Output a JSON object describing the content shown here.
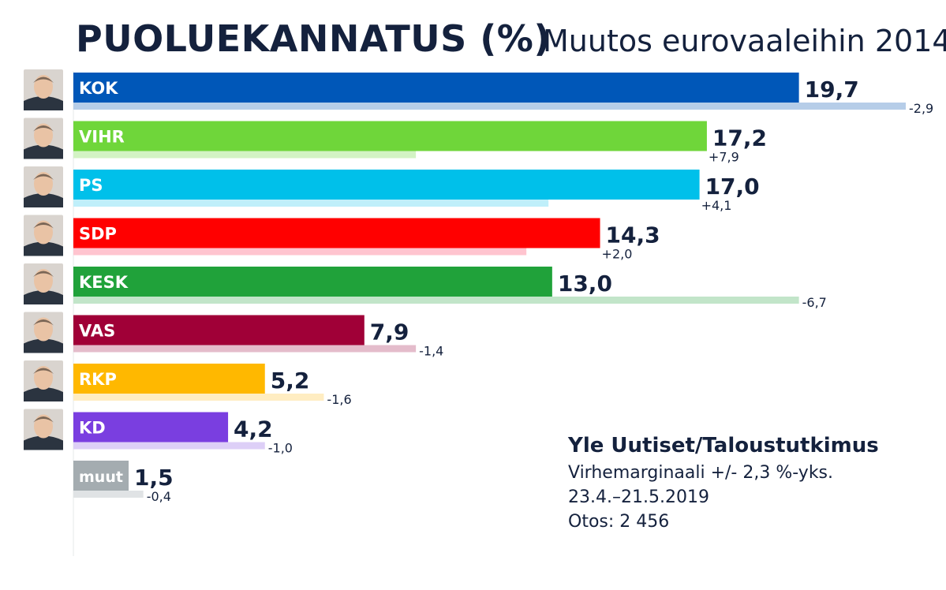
{
  "title": "PUOLUEKANNATUS (%)",
  "subtitle": "Muutos eurovaaleihin 2014",
  "source": {
    "title": "Yle Uutiset/Taloustutkimus",
    "margin": "Virhemarginaali  +/- 2,3 %-yks.",
    "period": "23.4.–21.5.2019",
    "sample": "Otos: 2 456"
  },
  "chart_data": {
    "type": "bar",
    "orientation": "horizontal",
    "categories": [
      "KOK",
      "VIHR",
      "PS",
      "SDP",
      "KESK",
      "VAS",
      "RKP",
      "KD",
      "muut"
    ],
    "series": [
      {
        "values": [
          19.7,
          17.2,
          17.0,
          14.3,
          13.0,
          7.9,
          5.2,
          4.2,
          1.5
        ]
      },
      {
        "values": [
          22.6,
          9.3,
          12.9,
          12.3,
          19.7,
          9.3,
          6.8,
          5.2,
          1.9
        ]
      }
    ],
    "value_labels": [
      "19,7",
      "17,2",
      "17,0",
      "14,3",
      "13,0",
      "7,9",
      "5,2",
      "4,2",
      "1,5"
    ],
    "change_labels": [
      "-2,9",
      "+7,9",
      "+4,1",
      "+2,0",
      "-6,7",
      "-1,4",
      "-1,6",
      "-1,0",
      "-0,4"
    ],
    "colors": [
      "#0057b8",
      "#6fd63a",
      "#00c0ea",
      "#ff0000",
      "#20a23a",
      "#a00037",
      "#ffb800",
      "#7a3ee0",
      "#a4acb0"
    ],
    "light_colors": [
      "#b6cde8",
      "#d3f3c4",
      "#bfeffa",
      "#ffc4cf",
      "#c2e5c9",
      "#e4bccb",
      "#ffedc2",
      "#ddcff7",
      "#e0e3e5"
    ],
    "xlim": [
      0,
      22.6
    ],
    "portraits": [
      "portrait-kok",
      "portrait-vihr",
      "portrait-ps",
      "portrait-sdp",
      "portrait-kesk",
      "portrait-vas",
      "portrait-rkp",
      "portrait-kd",
      ""
    ]
  }
}
